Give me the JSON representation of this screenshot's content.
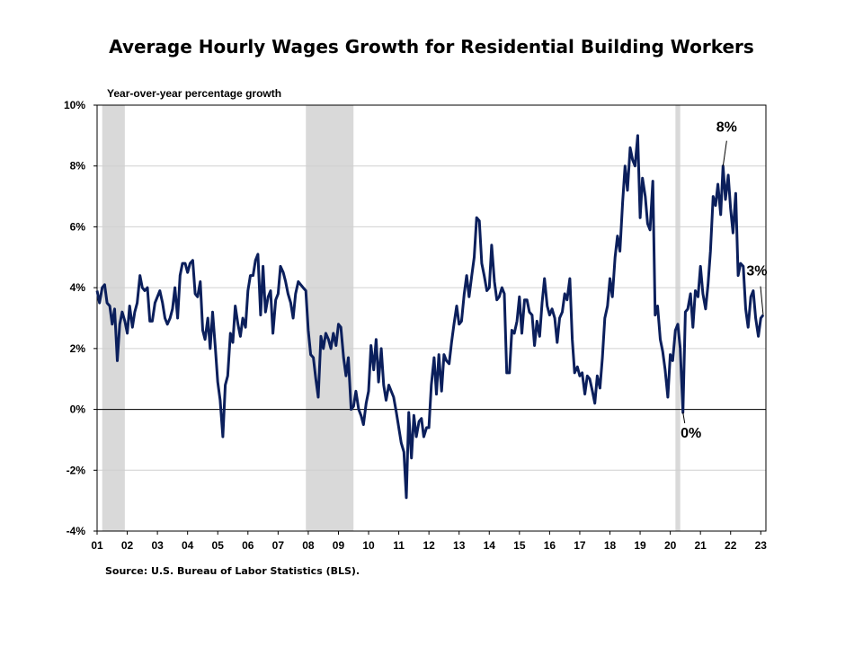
{
  "chart_data": {
    "type": "line",
    "title": "Average Hourly Wages Growth for Residential Building Workers",
    "ylabel": "Year-over-year percentage growth",
    "xlabel": "",
    "ylim": [
      -4,
      10
    ],
    "yticks": [
      "-4%",
      "-2%",
      "0%",
      "2%",
      "4%",
      "6%",
      "8%",
      "10%"
    ],
    "xticks": [
      "01",
      "02",
      "03",
      "04",
      "05",
      "06",
      "07",
      "08",
      "09",
      "10",
      "11",
      "12",
      "13",
      "14",
      "15",
      "16",
      "17",
      "18",
      "19",
      "20",
      "21",
      "22",
      "23"
    ],
    "xlim": [
      2001.0,
      2023.17
    ],
    "grid": "horizontal",
    "recessions": [
      [
        2001.17,
        2001.92
      ],
      [
        2007.92,
        2009.5
      ],
      [
        2020.17,
        2020.33
      ]
    ],
    "series": [
      {
        "color": "#0b1f5c",
        "points": [
          [
            2001.0,
            3.9
          ],
          [
            2001.08,
            3.5
          ],
          [
            2001.17,
            4.0
          ],
          [
            2001.25,
            4.1
          ],
          [
            2001.33,
            3.5
          ],
          [
            2001.42,
            3.4
          ],
          [
            2001.5,
            2.8
          ],
          [
            2001.58,
            3.3
          ],
          [
            2001.67,
            1.6
          ],
          [
            2001.75,
            2.8
          ],
          [
            2001.83,
            3.2
          ],
          [
            2001.92,
            2.9
          ],
          [
            2002.0,
            2.5
          ],
          [
            2002.08,
            3.4
          ],
          [
            2002.17,
            2.7
          ],
          [
            2002.25,
            3.2
          ],
          [
            2002.33,
            3.5
          ],
          [
            2002.42,
            4.4
          ],
          [
            2002.5,
            4.0
          ],
          [
            2002.58,
            3.9
          ],
          [
            2002.67,
            4.0
          ],
          [
            2002.75,
            2.9
          ],
          [
            2002.83,
            2.9
          ],
          [
            2002.92,
            3.5
          ],
          [
            2003.0,
            3.7
          ],
          [
            2003.08,
            3.9
          ],
          [
            2003.17,
            3.5
          ],
          [
            2003.25,
            3.0
          ],
          [
            2003.33,
            2.8
          ],
          [
            2003.42,
            3.0
          ],
          [
            2003.5,
            3.3
          ],
          [
            2003.58,
            4.0
          ],
          [
            2003.67,
            3.0
          ],
          [
            2003.75,
            4.4
          ],
          [
            2003.83,
            4.8
          ],
          [
            2003.92,
            4.8
          ],
          [
            2004.0,
            4.5
          ],
          [
            2004.08,
            4.8
          ],
          [
            2004.17,
            4.9
          ],
          [
            2004.25,
            3.8
          ],
          [
            2004.33,
            3.7
          ],
          [
            2004.42,
            4.2
          ],
          [
            2004.5,
            2.6
          ],
          [
            2004.58,
            2.3
          ],
          [
            2004.67,
            3.0
          ],
          [
            2004.75,
            2.0
          ],
          [
            2004.83,
            3.2
          ],
          [
            2004.92,
            2.0
          ],
          [
            2005.0,
            0.9
          ],
          [
            2005.08,
            0.3
          ],
          [
            2005.17,
            -0.9
          ],
          [
            2005.25,
            0.8
          ],
          [
            2005.33,
            1.1
          ],
          [
            2005.42,
            2.5
          ],
          [
            2005.5,
            2.2
          ],
          [
            2005.58,
            3.4
          ],
          [
            2005.67,
            2.8
          ],
          [
            2005.75,
            2.4
          ],
          [
            2005.83,
            3.0
          ],
          [
            2005.92,
            2.7
          ],
          [
            2006.0,
            3.9
          ],
          [
            2006.08,
            4.4
          ],
          [
            2006.17,
            4.4
          ],
          [
            2006.25,
            4.9
          ],
          [
            2006.33,
            5.1
          ],
          [
            2006.42,
            3.1
          ],
          [
            2006.5,
            4.7
          ],
          [
            2006.58,
            3.2
          ],
          [
            2006.67,
            3.7
          ],
          [
            2006.75,
            3.9
          ],
          [
            2006.83,
            2.5
          ],
          [
            2006.92,
            3.6
          ],
          [
            2007.0,
            3.8
          ],
          [
            2007.08,
            4.7
          ],
          [
            2007.17,
            4.5
          ],
          [
            2007.25,
            4.2
          ],
          [
            2007.33,
            3.8
          ],
          [
            2007.42,
            3.5
          ],
          [
            2007.5,
            3.0
          ],
          [
            2007.58,
            3.8
          ],
          [
            2007.67,
            4.2
          ],
          [
            2007.75,
            4.1
          ],
          [
            2007.83,
            4.0
          ],
          [
            2007.92,
            3.9
          ],
          [
            2008.0,
            2.6
          ],
          [
            2008.08,
            1.8
          ],
          [
            2008.17,
            1.7
          ],
          [
            2008.25,
            1.0
          ],
          [
            2008.33,
            0.4
          ],
          [
            2008.42,
            2.4
          ],
          [
            2008.5,
            2.0
          ],
          [
            2008.58,
            2.5
          ],
          [
            2008.67,
            2.3
          ],
          [
            2008.75,
            2.0
          ],
          [
            2008.83,
            2.5
          ],
          [
            2008.92,
            2.1
          ],
          [
            2009.0,
            2.8
          ],
          [
            2009.08,
            2.7
          ],
          [
            2009.17,
            1.7
          ],
          [
            2009.25,
            1.1
          ],
          [
            2009.33,
            1.7
          ],
          [
            2009.42,
            0.0
          ],
          [
            2009.5,
            0.1
          ],
          [
            2009.58,
            0.6
          ],
          [
            2009.67,
            0.0
          ],
          [
            2009.75,
            -0.2
          ],
          [
            2009.83,
            -0.5
          ],
          [
            2009.92,
            0.2
          ],
          [
            2010.0,
            0.6
          ],
          [
            2010.08,
            2.1
          ],
          [
            2010.17,
            1.3
          ],
          [
            2010.25,
            2.3
          ],
          [
            2010.33,
            0.9
          ],
          [
            2010.42,
            2.0
          ],
          [
            2010.5,
            0.8
          ],
          [
            2010.58,
            0.3
          ],
          [
            2010.67,
            0.8
          ],
          [
            2010.75,
            0.6
          ],
          [
            2010.83,
            0.4
          ],
          [
            2010.92,
            -0.1
          ],
          [
            2011.0,
            -0.6
          ],
          [
            2011.08,
            -1.1
          ],
          [
            2011.17,
            -1.4
          ],
          [
            2011.25,
            -2.9
          ],
          [
            2011.33,
            -0.1
          ],
          [
            2011.42,
            -1.6
          ],
          [
            2011.5,
            -0.2
          ],
          [
            2011.58,
            -0.9
          ],
          [
            2011.67,
            -0.4
          ],
          [
            2011.75,
            -0.3
          ],
          [
            2011.83,
            -0.9
          ],
          [
            2011.92,
            -0.6
          ],
          [
            2012.0,
            -0.6
          ],
          [
            2012.08,
            0.8
          ],
          [
            2012.17,
            1.7
          ],
          [
            2012.25,
            0.5
          ],
          [
            2012.33,
            1.8
          ],
          [
            2012.42,
            0.6
          ],
          [
            2012.5,
            1.8
          ],
          [
            2012.58,
            1.6
          ],
          [
            2012.67,
            1.5
          ],
          [
            2012.75,
            2.2
          ],
          [
            2012.83,
            2.8
          ],
          [
            2012.92,
            3.4
          ],
          [
            2013.0,
            2.8
          ],
          [
            2013.08,
            2.9
          ],
          [
            2013.17,
            3.8
          ],
          [
            2013.25,
            4.4
          ],
          [
            2013.33,
            3.7
          ],
          [
            2013.42,
            4.4
          ],
          [
            2013.5,
            5.0
          ],
          [
            2013.58,
            6.3
          ],
          [
            2013.67,
            6.2
          ],
          [
            2013.75,
            4.8
          ],
          [
            2013.83,
            4.4
          ],
          [
            2013.92,
            3.9
          ],
          [
            2014.0,
            4.0
          ],
          [
            2014.08,
            5.4
          ],
          [
            2014.17,
            4.2
          ],
          [
            2014.25,
            3.6
          ],
          [
            2014.33,
            3.7
          ],
          [
            2014.42,
            4.0
          ],
          [
            2014.5,
            3.8
          ],
          [
            2014.58,
            1.2
          ],
          [
            2014.67,
            1.2
          ],
          [
            2014.75,
            2.6
          ],
          [
            2014.83,
            2.5
          ],
          [
            2014.92,
            2.9
          ],
          [
            2015.0,
            3.7
          ],
          [
            2015.08,
            2.5
          ],
          [
            2015.17,
            3.6
          ],
          [
            2015.25,
            3.6
          ],
          [
            2015.33,
            3.2
          ],
          [
            2015.42,
            3.1
          ],
          [
            2015.5,
            2.1
          ],
          [
            2015.58,
            2.9
          ],
          [
            2015.67,
            2.4
          ],
          [
            2015.75,
            3.5
          ],
          [
            2015.83,
            4.3
          ],
          [
            2015.92,
            3.4
          ],
          [
            2016.0,
            3.1
          ],
          [
            2016.08,
            3.3
          ],
          [
            2016.17,
            3.0
          ],
          [
            2016.25,
            2.2
          ],
          [
            2016.33,
            3.0
          ],
          [
            2016.42,
            3.2
          ],
          [
            2016.5,
            3.8
          ],
          [
            2016.58,
            3.6
          ],
          [
            2016.67,
            4.3
          ],
          [
            2016.75,
            2.3
          ],
          [
            2016.83,
            1.2
          ],
          [
            2016.92,
            1.4
          ],
          [
            2017.0,
            1.1
          ],
          [
            2017.08,
            1.2
          ],
          [
            2017.17,
            0.5
          ],
          [
            2017.25,
            1.1
          ],
          [
            2017.33,
            1.0
          ],
          [
            2017.42,
            0.6
          ],
          [
            2017.5,
            0.2
          ],
          [
            2017.58,
            1.1
          ],
          [
            2017.67,
            0.7
          ],
          [
            2017.75,
            1.7
          ],
          [
            2017.83,
            3.0
          ],
          [
            2017.92,
            3.4
          ],
          [
            2018.0,
            4.3
          ],
          [
            2018.08,
            3.7
          ],
          [
            2018.17,
            5.0
          ],
          [
            2018.25,
            5.7
          ],
          [
            2018.33,
            5.2
          ],
          [
            2018.42,
            6.8
          ],
          [
            2018.5,
            8.0
          ],
          [
            2018.58,
            7.2
          ],
          [
            2018.67,
            8.6
          ],
          [
            2018.75,
            8.2
          ],
          [
            2018.83,
            8.0
          ],
          [
            2018.92,
            9.0
          ],
          [
            2019.0,
            6.3
          ],
          [
            2019.08,
            7.6
          ],
          [
            2019.17,
            7.0
          ],
          [
            2019.25,
            6.1
          ],
          [
            2019.33,
            5.9
          ],
          [
            2019.42,
            7.5
          ],
          [
            2019.5,
            3.1
          ],
          [
            2019.58,
            3.4
          ],
          [
            2019.67,
            2.3
          ],
          [
            2019.75,
            1.9
          ],
          [
            2019.83,
            1.3
          ],
          [
            2019.92,
            0.4
          ],
          [
            2020.0,
            1.8
          ],
          [
            2020.08,
            1.6
          ],
          [
            2020.17,
            2.6
          ],
          [
            2020.25,
            2.8
          ],
          [
            2020.33,
            2.0
          ],
          [
            2020.42,
            -0.1
          ],
          [
            2020.5,
            3.2
          ],
          [
            2020.58,
            3.3
          ],
          [
            2020.67,
            3.8
          ],
          [
            2020.75,
            2.7
          ],
          [
            2020.83,
            3.9
          ],
          [
            2020.92,
            3.7
          ],
          [
            2021.0,
            4.7
          ],
          [
            2021.08,
            3.8
          ],
          [
            2021.17,
            3.3
          ],
          [
            2021.25,
            4.1
          ],
          [
            2021.33,
            5.2
          ],
          [
            2021.42,
            7.0
          ],
          [
            2021.5,
            6.7
          ],
          [
            2021.58,
            7.4
          ],
          [
            2021.67,
            6.4
          ],
          [
            2021.75,
            8.0
          ],
          [
            2021.83,
            6.9
          ],
          [
            2021.92,
            7.7
          ],
          [
            2022.0,
            6.6
          ],
          [
            2022.08,
            5.8
          ],
          [
            2022.17,
            7.1
          ],
          [
            2022.25,
            4.4
          ],
          [
            2022.33,
            4.8
          ],
          [
            2022.42,
            4.7
          ],
          [
            2022.5,
            3.3
          ],
          [
            2022.58,
            2.7
          ],
          [
            2022.67,
            3.7
          ],
          [
            2022.75,
            3.9
          ],
          [
            2022.83,
            3.0
          ],
          [
            2022.92,
            2.4
          ],
          [
            2023.0,
            3.0
          ],
          [
            2023.08,
            3.1
          ]
        ]
      }
    ],
    "annotations": [
      {
        "text": "8%",
        "x": 2021.75,
        "y": 8.0
      },
      {
        "text": "0%",
        "x": 2020.42,
        "y": -0.1
      },
      {
        "text": "3%",
        "x": 2023.08,
        "y": 3.1
      }
    ]
  },
  "source": "Source: U.S. Bureau of Labor Statistics (BLS)."
}
